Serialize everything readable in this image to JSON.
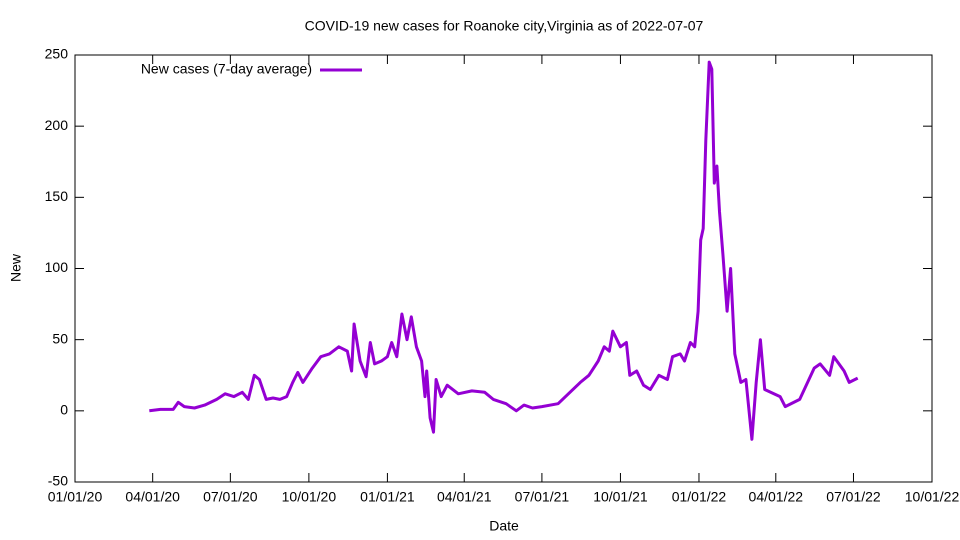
{
  "chart_data": {
    "type": "line",
    "title": "COVID-19 new cases for Roanoke city,Virginia as of 2022-07-07",
    "xlabel": "Date",
    "ylabel": "New",
    "legend": "top-left",
    "xlim": [
      "2020-01-01",
      "2022-10-01"
    ],
    "xticks": [
      {
        "value": "2020-01-01",
        "label": "01/01/20"
      },
      {
        "value": "2020-04-01",
        "label": "04/01/20"
      },
      {
        "value": "2020-07-01",
        "label": "07/01/20"
      },
      {
        "value": "2020-10-01",
        "label": "10/01/20"
      },
      {
        "value": "2021-01-01",
        "label": "01/01/21"
      },
      {
        "value": "2021-04-01",
        "label": "04/01/21"
      },
      {
        "value": "2021-07-01",
        "label": "07/01/21"
      },
      {
        "value": "2021-10-01",
        "label": "10/01/21"
      },
      {
        "value": "2022-01-01",
        "label": "01/01/22"
      },
      {
        "value": "2022-04-01",
        "label": "04/01/22"
      },
      {
        "value": "2022-07-01",
        "label": "07/01/22"
      },
      {
        "value": "2022-10-01",
        "label": "10/01/22"
      }
    ],
    "ylim": [
      -50,
      250
    ],
    "yticks": [
      -50,
      0,
      50,
      100,
      150,
      200,
      250
    ],
    "x": [
      "2020-03-28",
      "2020-04-10",
      "2020-04-25",
      "2020-05-01",
      "2020-05-08",
      "2020-05-20",
      "2020-06-01",
      "2020-06-15",
      "2020-06-25",
      "2020-07-05",
      "2020-07-15",
      "2020-07-22",
      "2020-07-29",
      "2020-08-04",
      "2020-08-12",
      "2020-08-20",
      "2020-08-28",
      "2020-09-05",
      "2020-09-12",
      "2020-09-18",
      "2020-09-24",
      "2020-10-05",
      "2020-10-15",
      "2020-10-25",
      "2020-11-05",
      "2020-11-15",
      "2020-11-20",
      "2020-11-23",
      "2020-11-30",
      "2020-12-07",
      "2020-12-12",
      "2020-12-17",
      "2020-12-25",
      "2021-01-01",
      "2021-01-06",
      "2021-01-12",
      "2021-01-18",
      "2021-01-24",
      "2021-01-29",
      "2021-02-04",
      "2021-02-10",
      "2021-02-14",
      "2021-02-16",
      "2021-02-20",
      "2021-02-24",
      "2021-02-27",
      "2021-03-05",
      "2021-03-12",
      "2021-03-25",
      "2021-04-10",
      "2021-04-25",
      "2021-05-05",
      "2021-05-20",
      "2021-06-01",
      "2021-06-10",
      "2021-06-20",
      "2021-07-01",
      "2021-07-20",
      "2021-08-01",
      "2021-08-15",
      "2021-08-25",
      "2021-09-05",
      "2021-09-12",
      "2021-09-18",
      "2021-09-22",
      "2021-10-01",
      "2021-10-08",
      "2021-10-12",
      "2021-10-20",
      "2021-10-28",
      "2021-11-05",
      "2021-11-15",
      "2021-11-25",
      "2021-12-01",
      "2021-12-10",
      "2021-12-15",
      "2021-12-22",
      "2021-12-27",
      "2021-12-31",
      "2022-01-03",
      "2022-01-06",
      "2022-01-09",
      "2022-01-13",
      "2022-01-16",
      "2022-01-19",
      "2022-01-22",
      "2022-01-25",
      "2022-01-29",
      "2022-02-03",
      "2022-02-07",
      "2022-02-12",
      "2022-02-19",
      "2022-02-25",
      "2022-03-04",
      "2022-03-09",
      "2022-03-14",
      "2022-03-19",
      "2022-04-06",
      "2022-04-12",
      "2022-04-29",
      "2022-05-16",
      "2022-05-23",
      "2022-06-03",
      "2022-06-08",
      "2022-06-20",
      "2022-06-26",
      "2022-07-06"
    ],
    "series": [
      {
        "name": "New cases (7-day average)",
        "color": "#9400d3",
        "values": [
          0,
          1,
          1,
          6,
          3,
          2,
          4,
          8,
          12,
          10,
          13,
          8,
          25,
          22,
          8,
          9,
          8,
          10,
          20,
          27,
          20,
          30,
          38,
          40,
          45,
          42,
          28,
          61,
          35,
          24,
          48,
          33,
          35,
          38,
          48,
          38,
          68,
          50,
          66,
          45,
          35,
          10,
          28,
          -5,
          -15,
          22,
          10,
          18,
          12,
          14,
          13,
          8,
          5,
          0,
          4,
          2,
          3,
          5,
          12,
          20,
          25,
          35,
          45,
          42,
          56,
          45,
          48,
          25,
          28,
          18,
          15,
          25,
          22,
          38,
          40,
          35,
          48,
          45,
          70,
          120,
          128,
          190,
          245,
          240,
          160,
          172,
          140,
          110,
          70,
          100,
          40,
          20,
          22,
          -20,
          20,
          50,
          15,
          10,
          3,
          8,
          30,
          33,
          25,
          38,
          28,
          20,
          23
        ]
      }
    ]
  }
}
